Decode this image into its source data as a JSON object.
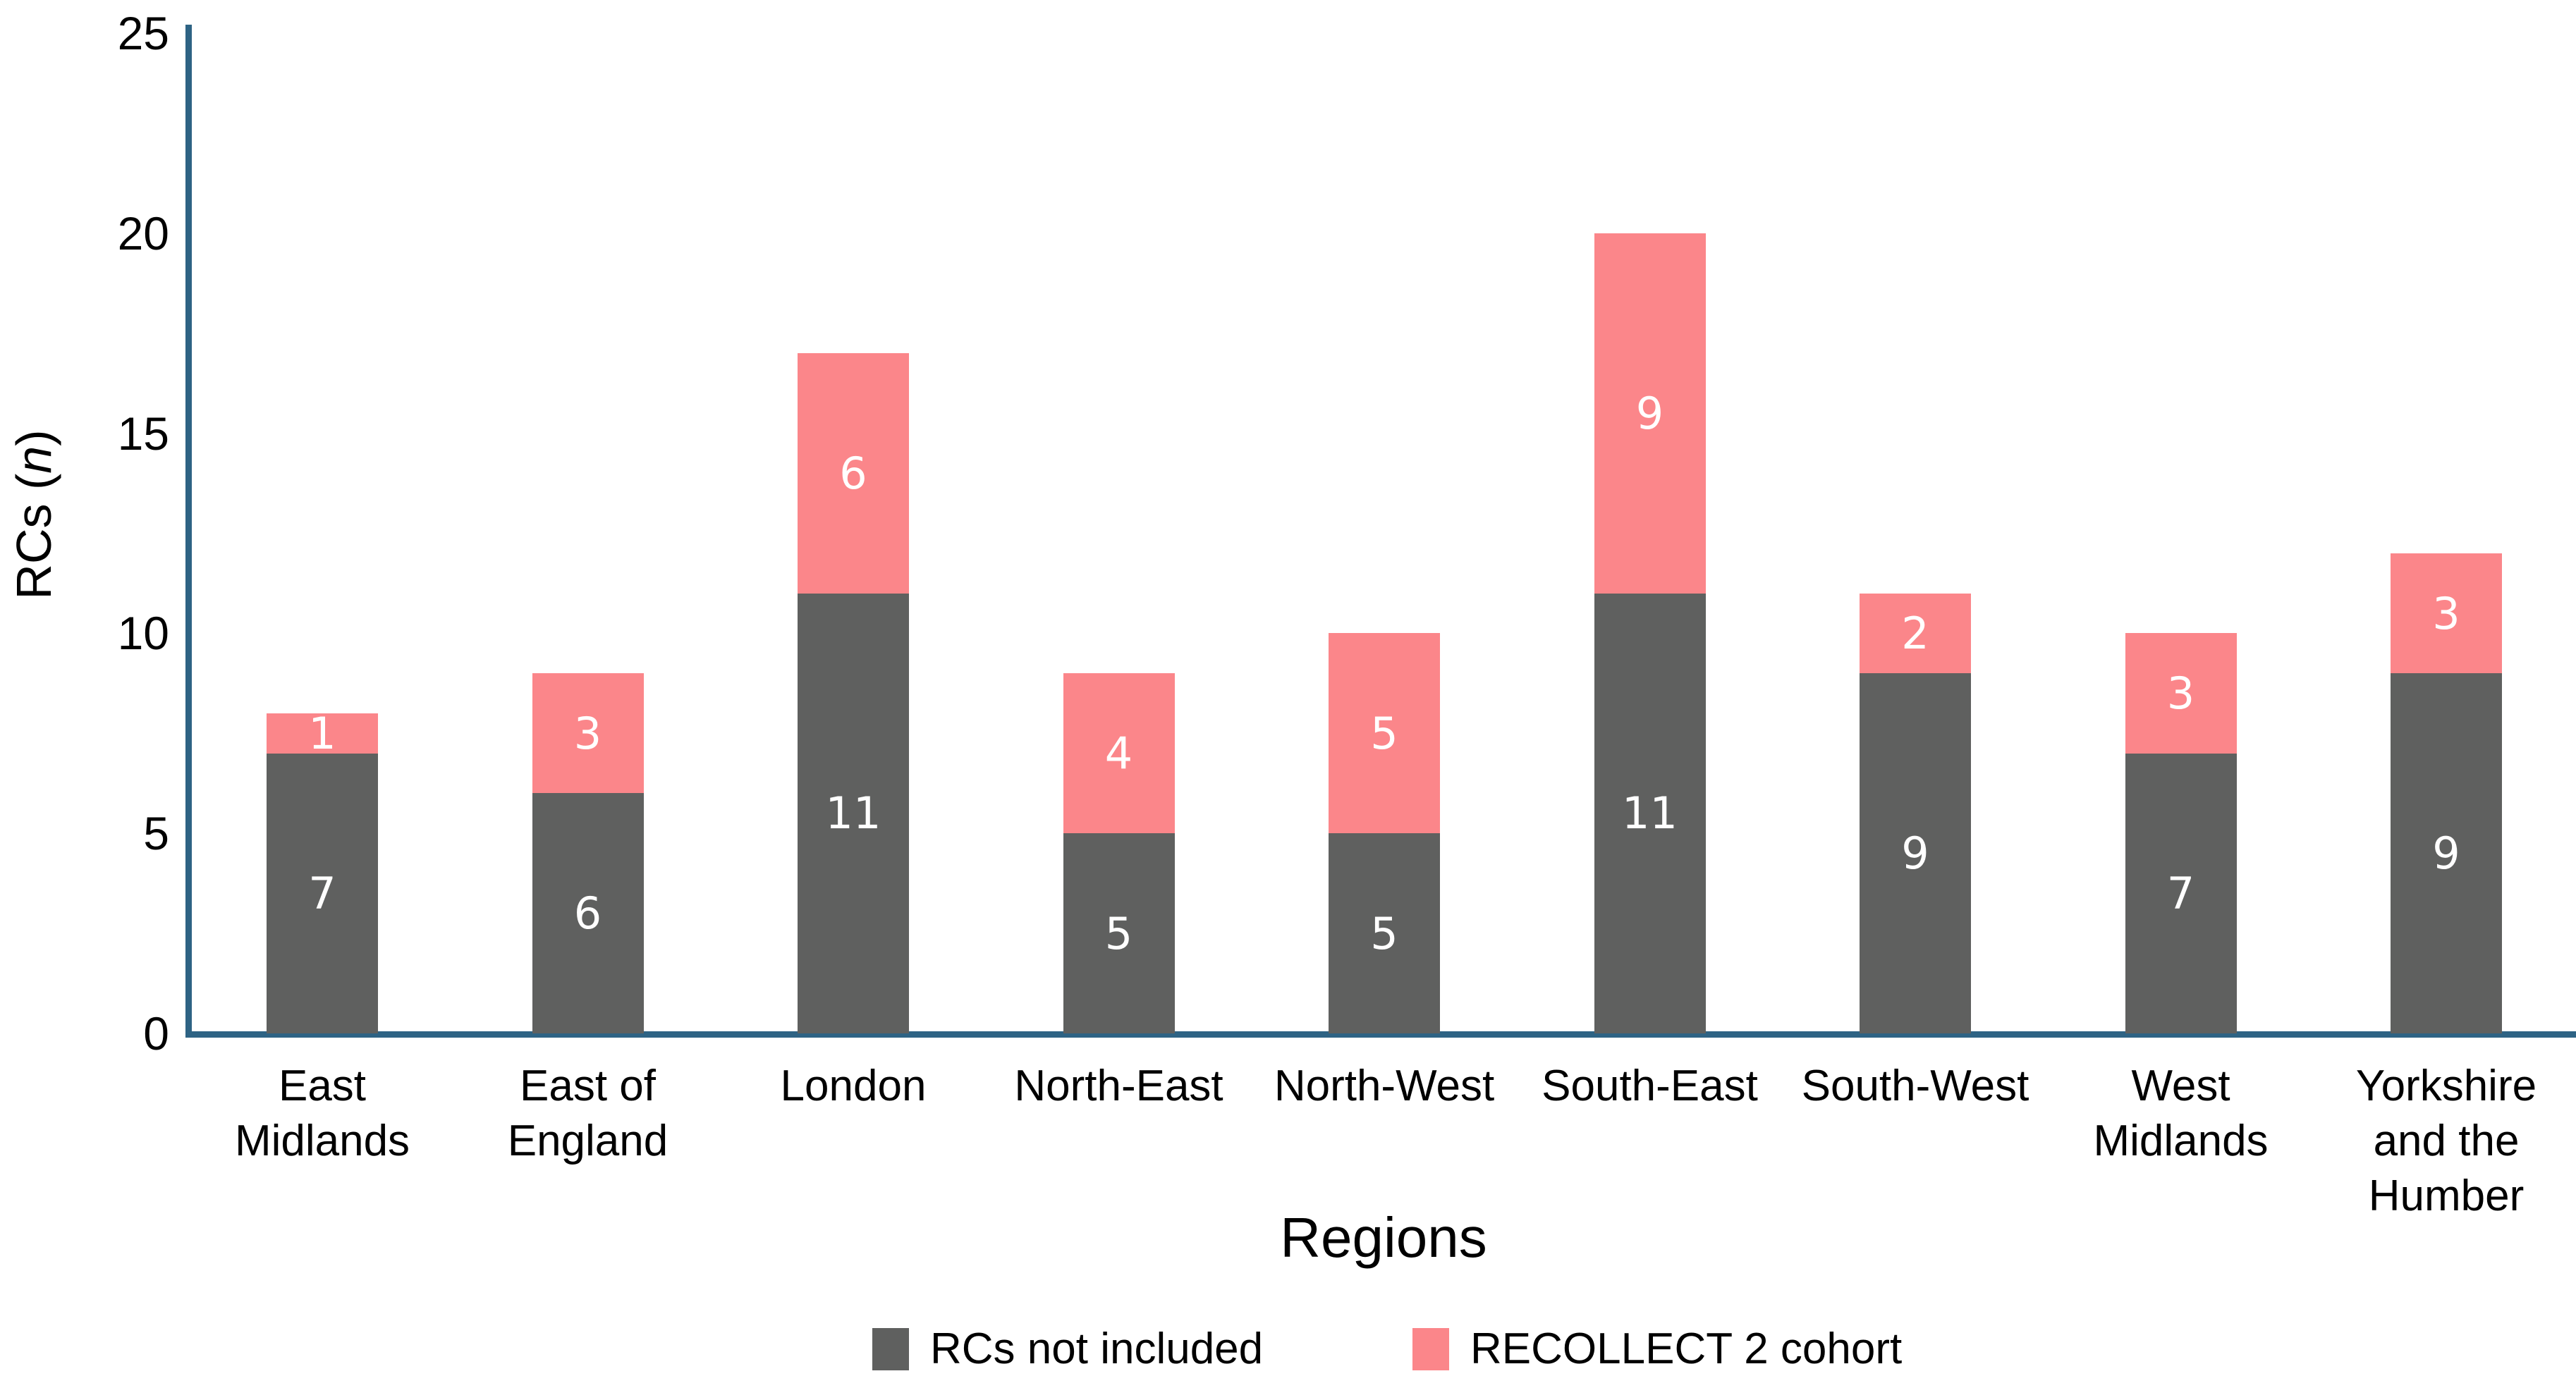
{
  "chart_data": {
    "type": "bar",
    "stacked": true,
    "title": "",
    "xlabel": "Regions",
    "ylabel": "RCs (n)",
    "ylim": [
      0,
      25
    ],
    "yticks": [
      0,
      5,
      10,
      15,
      20,
      25
    ],
    "grid": false,
    "legend_position": "bottom",
    "categories": [
      "East Midlands",
      "East of England",
      "London",
      "North-East",
      "North-West",
      "South-East",
      "South-West",
      "West Midlands",
      "Yorkshire and the Humber"
    ],
    "category_lines": [
      [
        "East",
        "Midlands"
      ],
      [
        "East of",
        "England"
      ],
      [
        "London"
      ],
      [
        "North-East"
      ],
      [
        "North-West"
      ],
      [
        "South-East"
      ],
      [
        "South-West"
      ],
      [
        "West",
        "Midlands"
      ],
      [
        "Yorkshire",
        "and the",
        "Humber"
      ]
    ],
    "series": [
      {
        "name": "RCs not included",
        "color": "#5f605f",
        "values": [
          7,
          6,
          11,
          5,
          5,
          11,
          9,
          7,
          9
        ]
      },
      {
        "name": "RECOLLECT 2 cohort",
        "color": "#fb868a",
        "values": [
          1,
          3,
          6,
          4,
          5,
          9,
          2,
          3,
          3
        ]
      }
    ]
  },
  "axis_color": "#2e6384",
  "ylabel_main": "RCs (",
  "ylabel_italic": "n",
  "ylabel_close": ")",
  "legend": [
    {
      "label": "RCs not included",
      "color": "#5f605f"
    },
    {
      "label": "RECOLLECT 2 cohort",
      "color": "#fb868a"
    }
  ]
}
